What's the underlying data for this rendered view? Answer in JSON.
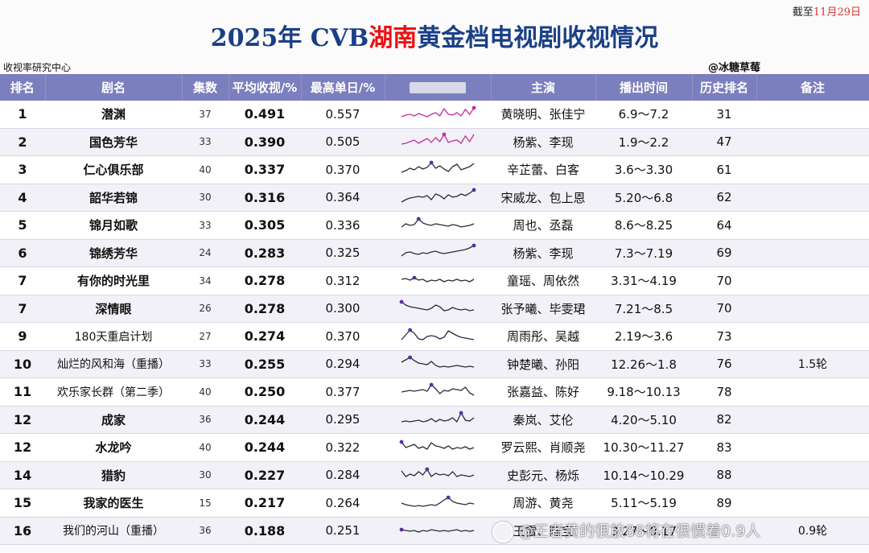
{
  "cutoff": {
    "prefix": "截至",
    "date": "11月29日"
  },
  "title": {
    "part1": "2025年 CVB",
    "highlight": "湖南",
    "part2": "黄金档电视剧收视情况"
  },
  "source": "收视率研究中心",
  "author": "@冰糖草莓",
  "headers": [
    "排名",
    "剧名",
    "集数",
    "平均收视/%",
    "最高单日/%",
    "",
    "主演",
    "播出时间",
    "历史排名",
    "备注"
  ],
  "rows": [
    {
      "rank": "1",
      "name": "潜渊",
      "eps": "37",
      "avg": "0.491",
      "peak": "0.557",
      "cast": "黄晓明、张佳宁",
      "period": "6.9～7.2",
      "hist": "31",
      "note": ""
    },
    {
      "rank": "2",
      "name": "国色芳华",
      "eps": "33",
      "avg": "0.390",
      "peak": "0.505",
      "cast": "杨紫、李现",
      "period": "1.9～2.2",
      "hist": "47",
      "note": ""
    },
    {
      "rank": "3",
      "name": "仁心俱乐部",
      "eps": "40",
      "avg": "0.337",
      "peak": "0.370",
      "cast": "辛芷蕾、白客",
      "period": "3.6～3.30",
      "hist": "61",
      "note": ""
    },
    {
      "rank": "4",
      "name": "韶华若锦",
      "eps": "30",
      "avg": "0.316",
      "peak": "0.364",
      "cast": "宋威龙、包上恩",
      "period": "5.20～6.8",
      "hist": "62",
      "note": ""
    },
    {
      "rank": "5",
      "name": "锦月如歌",
      "eps": "33",
      "avg": "0.305",
      "peak": "0.336",
      "cast": "周也、丞磊",
      "period": "8.6～8.25",
      "hist": "64",
      "note": ""
    },
    {
      "rank": "6",
      "name": "锦绣芳华",
      "eps": "24",
      "avg": "0.283",
      "peak": "0.325",
      "cast": "杨紫、李现",
      "period": "7.3～7.19",
      "hist": "69",
      "note": ""
    },
    {
      "rank": "7",
      "name": "有你的时光里",
      "eps": "34",
      "avg": "0.278",
      "peak": "0.312",
      "cast": "童瑶、周依然",
      "period": "3.31～4.19",
      "hist": "70",
      "note": ""
    },
    {
      "rank": "7",
      "name": "深情眼",
      "eps": "26",
      "avg": "0.278",
      "peak": "0.300",
      "cast": "张予曦、毕雯珺",
      "period": "7.21～8.5",
      "hist": "70",
      "note": ""
    },
    {
      "rank": "9",
      "name": "180天重启计划",
      "eps": "27",
      "avg": "0.274",
      "peak": "0.370",
      "cast": "周雨彤、吴越",
      "period": "2.19～3.6",
      "hist": "73",
      "note": ""
    },
    {
      "rank": "10",
      "name": "灿烂的风和海（重播）",
      "eps": "33",
      "avg": "0.255",
      "peak": "0.294",
      "cast": "钟楚曦、孙阳",
      "period": "12.26～1.8",
      "hist": "76",
      "note": "1.5轮"
    },
    {
      "rank": "11",
      "name": "欢乐家长群（第二季）",
      "eps": "40",
      "avg": "0.250",
      "peak": "0.377",
      "cast": "张嘉益、陈好",
      "period": "9.18～10.13",
      "hist": "78",
      "note": ""
    },
    {
      "rank": "12",
      "name": "成家",
      "eps": "36",
      "avg": "0.244",
      "peak": "0.295",
      "cast": "秦岚、艾伦",
      "period": "4.20～5.10",
      "hist": "82",
      "note": ""
    },
    {
      "rank": "12",
      "name": "水龙吟",
      "eps": "40",
      "avg": "0.244",
      "peak": "0.322",
      "cast": "罗云熙、肖顺尧",
      "period": "10.30～11.27",
      "hist": "83",
      "note": ""
    },
    {
      "rank": "14",
      "name": "猎豹",
      "eps": "30",
      "avg": "0.227",
      "peak": "0.284",
      "cast": "史彭元、杨烁",
      "period": "10.14～10.29",
      "hist": "88",
      "note": ""
    },
    {
      "rank": "15",
      "name": "我家的医生",
      "eps": "15",
      "avg": "0.217",
      "peak": "0.264",
      "cast": "周游、黄尧",
      "period": "5.11～5.19",
      "hist": "89",
      "note": ""
    },
    {
      "rank": "16",
      "name": "我们的河山（重播）",
      "eps": "36",
      "avg": "0.188",
      "peak": "0.251",
      "cast": "王雷、陈宝",
      "period": "3.27～9.17",
      "hist": "",
      "note": "0.9轮"
    }
  ],
  "sparklines": [
    [
      0.35,
      0.45,
      0.5,
      0.4,
      0.55,
      0.45,
      0.35,
      0.5,
      0.6,
      0.4,
      0.85,
      0.5,
      0.45,
      0.6,
      0.4,
      0.8,
      0.5,
      0.9
    ],
    [
      0.35,
      0.4,
      0.5,
      0.6,
      0.4,
      0.55,
      0.7,
      0.45,
      0.75,
      0.5,
      0.95,
      0.45,
      0.55,
      0.6,
      0.4,
      0.85,
      0.5,
      0.95
    ],
    [
      0.35,
      0.45,
      0.6,
      0.5,
      0.7,
      0.55,
      0.65,
      0.95,
      0.6,
      0.75,
      0.55,
      0.4,
      0.7,
      0.85,
      0.5,
      0.6,
      0.7,
      0.9
    ],
    [
      0.2,
      0.35,
      0.45,
      0.5,
      0.55,
      0.5,
      0.6,
      0.35,
      0.7,
      0.6,
      0.4,
      0.65,
      0.5,
      0.55,
      0.7,
      0.6,
      0.75,
      0.95
    ],
    [
      0.4,
      0.6,
      0.5,
      0.55,
      0.9,
      0.65,
      0.55,
      0.5,
      0.6,
      0.55,
      0.5,
      0.45,
      0.55,
      0.5,
      0.4,
      0.45,
      0.5,
      0.6
    ],
    [
      0.3,
      0.5,
      0.55,
      0.45,
      0.4,
      0.5,
      0.45,
      0.55,
      0.6,
      0.5,
      0.45,
      0.5,
      0.55,
      0.6,
      0.65,
      0.7,
      0.8,
      0.95
    ],
    [
      0.6,
      0.65,
      0.55,
      0.7,
      0.55,
      0.6,
      0.45,
      0.55,
      0.5,
      0.6,
      0.45,
      0.55,
      0.5,
      0.6,
      0.5,
      0.55,
      0.45,
      0.6
    ],
    [
      0.9,
      0.7,
      0.6,
      0.55,
      0.5,
      0.45,
      0.4,
      0.5,
      0.7,
      0.6,
      0.35,
      0.4,
      0.55,
      0.45,
      0.4,
      0.45,
      0.35,
      0.4
    ],
    [
      0.3,
      0.6,
      0.9,
      0.7,
      0.35,
      0.3,
      0.5,
      0.55,
      0.5,
      0.35,
      0.45,
      0.85,
      0.7,
      0.55,
      0.45,
      0.4,
      0.35,
      0.3
    ],
    [
      0.6,
      0.75,
      0.9,
      0.7,
      0.55,
      0.5,
      0.45,
      0.65,
      0.4,
      0.3,
      0.35,
      0.3,
      0.35,
      0.4,
      0.35,
      0.3,
      0.35,
      0.3
    ],
    [
      0.5,
      0.55,
      0.6,
      0.55,
      0.6,
      0.65,
      0.55,
      0.95,
      0.7,
      0.4,
      0.6,
      0.55,
      0.7,
      0.65,
      0.6,
      0.8,
      0.45,
      0.3
    ],
    [
      0.35,
      0.4,
      0.35,
      0.4,
      0.45,
      0.35,
      0.4,
      0.55,
      0.35,
      0.5,
      0.4,
      0.45,
      0.6,
      0.35,
      0.9,
      0.45,
      0.4,
      0.6
    ],
    [
      0.85,
      0.5,
      0.6,
      0.7,
      0.45,
      0.55,
      0.4,
      0.8,
      0.6,
      0.55,
      0.45,
      0.6,
      0.4,
      0.5,
      0.45,
      0.55,
      0.4,
      0.5
    ],
    [
      0.75,
      0.4,
      0.55,
      0.45,
      0.7,
      0.5,
      0.85,
      0.4,
      0.6,
      0.5,
      0.55,
      0.45,
      0.7,
      0.4,
      0.5,
      0.45,
      0.4,
      0.5
    ],
    [
      0.5,
      0.4,
      0.35,
      0.3,
      0.35,
      0.3,
      0.35,
      0.4,
      0.35,
      0.5,
      0.7,
      0.85,
      0.6,
      0.5,
      0.45,
      0.4,
      0.5,
      0.45
    ],
    [
      0.55,
      0.5,
      0.45,
      0.5,
      0.4,
      0.5,
      0.45,
      0.55,
      0.5,
      0.45,
      0.5,
      0.45,
      0.5,
      0.55,
      0.45,
      0.5,
      0.45,
      0.5
    ]
  ],
  "colors": {
    "header_bg": "#7c7fbd",
    "title": "#1b3f86",
    "highlight": "#e11111",
    "spark_pink": "#c52d9e",
    "spark_default": "#2a2a3a",
    "marker": "#5b2fa0"
  },
  "watermark": "@王者黄的很放88将在很惯着0.9人"
}
